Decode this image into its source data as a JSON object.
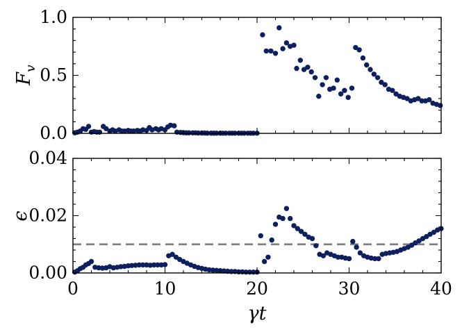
{
  "chart_data": [
    {
      "type": "scatter",
      "ylabel": "F_v",
      "ylabel_base": "F",
      "ylabel_sub": "v",
      "xlim": [
        0,
        40
      ],
      "ylim": [
        0,
        1.0
      ],
      "yticks": [
        0.0,
        0.5,
        1.0
      ],
      "ytick_labels": [
        "0.0",
        "0.5",
        "1.0"
      ],
      "marker_color": "#0d1f5c",
      "points": [
        [
          0.2,
          0.005
        ],
        [
          0.5,
          0.01
        ],
        [
          0.8,
          0.02
        ],
        [
          1.1,
          0.04
        ],
        [
          1.4,
          0.035
        ],
        [
          1.7,
          0.06
        ],
        [
          2.0,
          0.01
        ],
        [
          2.3,
          0.015
        ],
        [
          2.6,
          0.01
        ],
        [
          2.9,
          0.01
        ],
        [
          3.3,
          0.06
        ],
        [
          3.6,
          0.04
        ],
        [
          4.0,
          0.02
        ],
        [
          4.3,
          0.03
        ],
        [
          4.6,
          0.02
        ],
        [
          5.0,
          0.03
        ],
        [
          5.3,
          0.02
        ],
        [
          5.6,
          0.02
        ],
        [
          6.0,
          0.025
        ],
        [
          6.3,
          0.02
        ],
        [
          6.6,
          0.02
        ],
        [
          7.0,
          0.025
        ],
        [
          7.3,
          0.02
        ],
        [
          7.6,
          0.03
        ],
        [
          8.0,
          0.025
        ],
        [
          8.3,
          0.05
        ],
        [
          8.6,
          0.03
        ],
        [
          9.0,
          0.04
        ],
        [
          9.3,
          0.03
        ],
        [
          9.6,
          0.04
        ],
        [
          10.0,
          0.03
        ],
        [
          10.3,
          0.055
        ],
        [
          10.6,
          0.07
        ],
        [
          11.0,
          0.065
        ],
        [
          11.3,
          0.01
        ],
        [
          11.7,
          0.008
        ],
        [
          12.0,
          0.006
        ],
        [
          12.3,
          0.005
        ],
        [
          12.6,
          0.005
        ],
        [
          13.0,
          0.004
        ],
        [
          13.3,
          0.004
        ],
        [
          13.6,
          0.003
        ],
        [
          14.0,
          0.003
        ],
        [
          14.3,
          0.003
        ],
        [
          14.6,
          0.002
        ],
        [
          15.0,
          0.002
        ],
        [
          15.3,
          0.002
        ],
        [
          15.6,
          0.002
        ],
        [
          16.0,
          0.002
        ],
        [
          16.3,
          0.001
        ],
        [
          16.6,
          0.001
        ],
        [
          17.0,
          0.001
        ],
        [
          17.3,
          0.001
        ],
        [
          17.6,
          0.001
        ],
        [
          18.0,
          0.001
        ],
        [
          18.3,
          0.001
        ],
        [
          18.6,
          0.001
        ],
        [
          19.0,
          0.001
        ],
        [
          19.3,
          0.001
        ],
        [
          19.6,
          0.001
        ],
        [
          20.0,
          0.001
        ],
        [
          20.6,
          0.85
        ],
        [
          21.0,
          0.71
        ],
        [
          21.5,
          0.71
        ],
        [
          22.0,
          0.69
        ],
        [
          22.4,
          0.91
        ],
        [
          22.8,
          0.73
        ],
        [
          23.2,
          0.78
        ],
        [
          23.6,
          0.75
        ],
        [
          24.0,
          0.76
        ],
        [
          24.3,
          0.56
        ],
        [
          24.7,
          0.63
        ],
        [
          25.1,
          0.55
        ],
        [
          25.5,
          0.57
        ],
        [
          25.9,
          0.53
        ],
        [
          26.3,
          0.48
        ],
        [
          26.7,
          0.32
        ],
        [
          27.1,
          0.42
        ],
        [
          27.5,
          0.48
        ],
        [
          27.9,
          0.38
        ],
        [
          28.3,
          0.39
        ],
        [
          28.7,
          0.46
        ],
        [
          29.1,
          0.34
        ],
        [
          29.5,
          0.37
        ],
        [
          29.9,
          0.31
        ],
        [
          30.3,
          0.39
        ],
        [
          30.7,
          0.74
        ],
        [
          31.1,
          0.72
        ],
        [
          31.5,
          0.65
        ],
        [
          31.9,
          0.59
        ],
        [
          32.3,
          0.55
        ],
        [
          32.7,
          0.51
        ],
        [
          33.1,
          0.48
        ],
        [
          33.5,
          0.44
        ],
        [
          33.9,
          0.42
        ],
        [
          34.3,
          0.38
        ],
        [
          34.7,
          0.37
        ],
        [
          35.1,
          0.34
        ],
        [
          35.5,
          0.32
        ],
        [
          35.9,
          0.31
        ],
        [
          36.3,
          0.3
        ],
        [
          36.7,
          0.28
        ],
        [
          37.1,
          0.29
        ],
        [
          37.5,
          0.3
        ],
        [
          37.9,
          0.28
        ],
        [
          38.3,
          0.28
        ],
        [
          38.7,
          0.29
        ],
        [
          39.1,
          0.26
        ],
        [
          39.5,
          0.25
        ],
        [
          39.9,
          0.24
        ]
      ]
    },
    {
      "type": "scatter",
      "xlabel": "γt",
      "ylabel": "ϵ",
      "xlim": [
        0,
        40
      ],
      "ylim": [
        0,
        0.04
      ],
      "xticks": [
        0,
        10,
        20,
        30,
        40
      ],
      "xtick_labels": [
        "0",
        "10",
        "20",
        "30",
        "40"
      ],
      "yticks": [
        0.0,
        0.02,
        0.04
      ],
      "ytick_labels": [
        "0.00",
        "0.02",
        "0.04"
      ],
      "reference_line": {
        "y": 0.01,
        "style": "dashed",
        "color": "#808080"
      },
      "marker_color": "#0d1f5c",
      "points": [
        [
          0.2,
          0.0003
        ],
        [
          0.5,
          0.0008
        ],
        [
          0.8,
          0.0015
        ],
        [
          1.1,
          0.002
        ],
        [
          1.4,
          0.0028
        ],
        [
          1.7,
          0.0033
        ],
        [
          2.0,
          0.004
        ],
        [
          2.4,
          0.002
        ],
        [
          2.8,
          0.0018
        ],
        [
          3.2,
          0.0017
        ],
        [
          3.6,
          0.0018
        ],
        [
          4.0,
          0.0022
        ],
        [
          4.4,
          0.0018
        ],
        [
          4.8,
          0.002
        ],
        [
          5.2,
          0.0022
        ],
        [
          5.6,
          0.0023
        ],
        [
          6.0,
          0.0025
        ],
        [
          6.4,
          0.0026
        ],
        [
          6.8,
          0.0027
        ],
        [
          7.2,
          0.0028
        ],
        [
          7.6,
          0.0028
        ],
        [
          8.0,
          0.0028
        ],
        [
          8.4,
          0.0027
        ],
        [
          8.8,
          0.0028
        ],
        [
          9.2,
          0.0028
        ],
        [
          9.6,
          0.0028
        ],
        [
          10.0,
          0.0029
        ],
        [
          10.4,
          0.006
        ],
        [
          10.8,
          0.0065
        ],
        [
          11.2,
          0.0055
        ],
        [
          11.6,
          0.0047
        ],
        [
          12.0,
          0.004
        ],
        [
          12.4,
          0.0034
        ],
        [
          12.8,
          0.0028
        ],
        [
          13.2,
          0.0023
        ],
        [
          13.6,
          0.0019
        ],
        [
          14.0,
          0.0016
        ],
        [
          14.4,
          0.0013
        ],
        [
          14.8,
          0.0011
        ],
        [
          15.2,
          0.001
        ],
        [
          15.6,
          0.0009
        ],
        [
          16.0,
          0.0008
        ],
        [
          16.4,
          0.0007
        ],
        [
          16.8,
          0.0006
        ],
        [
          17.2,
          0.0005
        ],
        [
          17.6,
          0.0005
        ],
        [
          18.0,
          0.0004
        ],
        [
          18.4,
          0.0004
        ],
        [
          18.8,
          0.0003
        ],
        [
          19.2,
          0.0003
        ],
        [
          19.6,
          0.0003
        ],
        [
          20.0,
          0.0003
        ],
        [
          20.4,
          0.013
        ],
        [
          20.8,
          0.004
        ],
        [
          21.2,
          0.0055
        ],
        [
          21.6,
          0.0115
        ],
        [
          22.0,
          0.017
        ],
        [
          22.4,
          0.0195
        ],
        [
          22.8,
          0.019
        ],
        [
          23.2,
          0.0225
        ],
        [
          23.6,
          0.019
        ],
        [
          24.0,
          0.0165
        ],
        [
          24.4,
          0.0155
        ],
        [
          24.8,
          0.0145
        ],
        [
          25.2,
          0.0135
        ],
        [
          25.6,
          0.0125
        ],
        [
          26.0,
          0.012
        ],
        [
          26.4,
          0.0095
        ],
        [
          26.8,
          0.0065
        ],
        [
          27.2,
          0.006
        ],
        [
          27.6,
          0.007
        ],
        [
          28.0,
          0.0065
        ],
        [
          28.4,
          0.006
        ],
        [
          28.8,
          0.0055
        ],
        [
          29.2,
          0.0055
        ],
        [
          29.6,
          0.0052
        ],
        [
          30.0,
          0.005
        ],
        [
          30.4,
          0.011
        ],
        [
          30.8,
          0.009
        ],
        [
          31.2,
          0.007
        ],
        [
          31.6,
          0.006
        ],
        [
          32.0,
          0.0055
        ],
        [
          32.4,
          0.0052
        ],
        [
          32.8,
          0.005
        ],
        [
          33.2,
          0.005
        ],
        [
          33.6,
          0.0065
        ],
        [
          34.0,
          0.0068
        ],
        [
          34.4,
          0.007
        ],
        [
          34.8,
          0.0072
        ],
        [
          35.2,
          0.0075
        ],
        [
          35.6,
          0.008
        ],
        [
          36.0,
          0.0085
        ],
        [
          36.4,
          0.009
        ],
        [
          36.8,
          0.0097
        ],
        [
          37.2,
          0.0105
        ],
        [
          37.6,
          0.0112
        ],
        [
          38.0,
          0.012
        ],
        [
          38.4,
          0.0127
        ],
        [
          38.8,
          0.0135
        ],
        [
          39.2,
          0.0142
        ],
        [
          39.6,
          0.015
        ],
        [
          40.0,
          0.0155
        ]
      ]
    }
  ]
}
